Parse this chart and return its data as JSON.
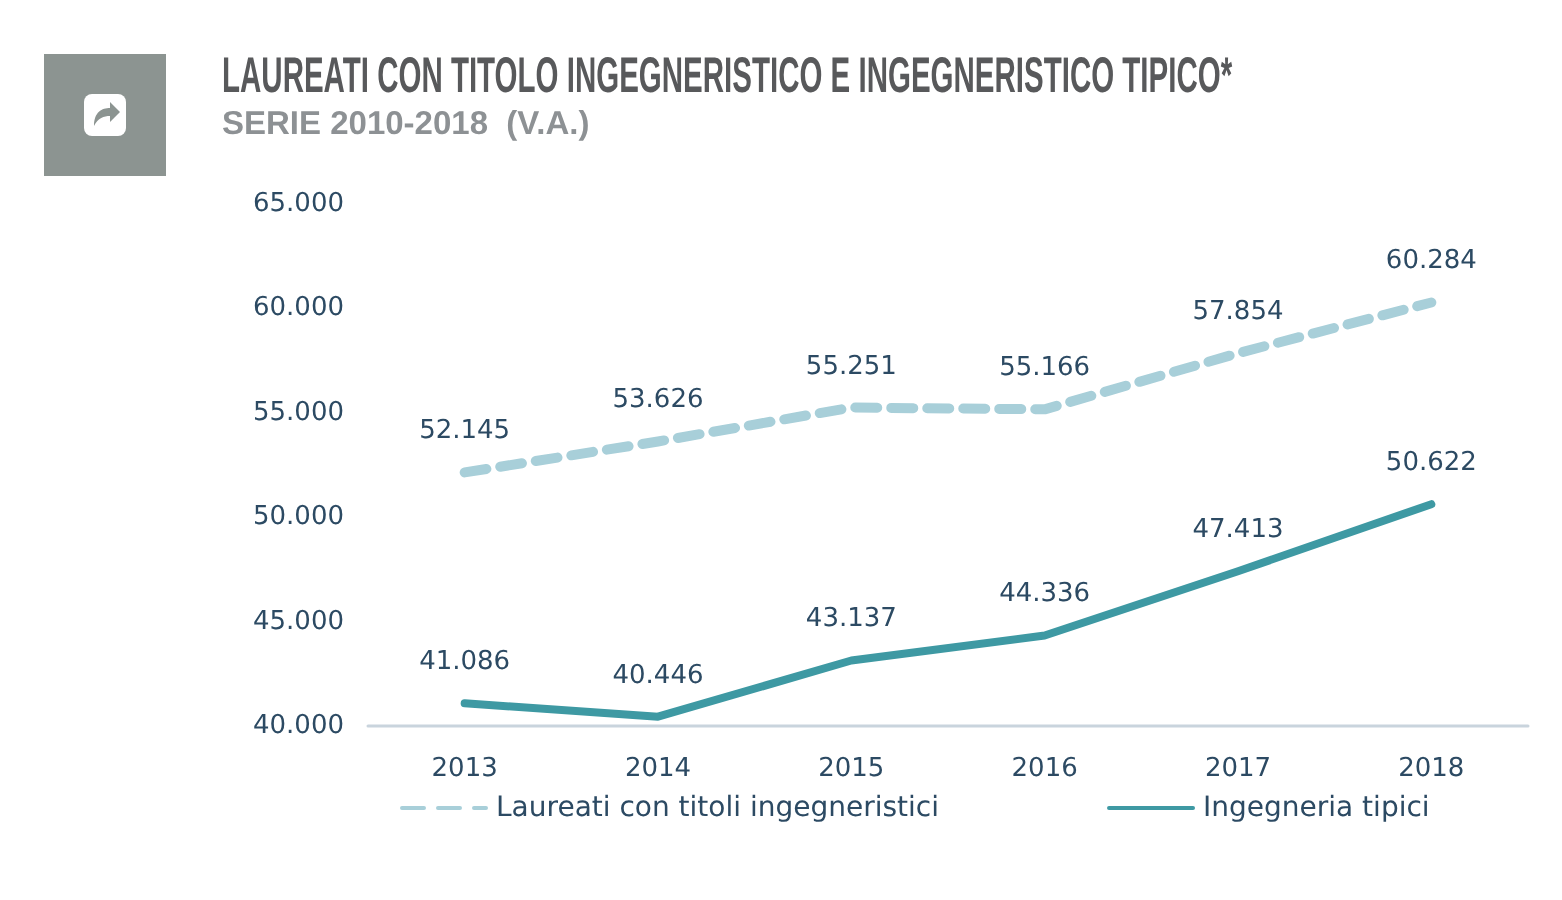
{
  "chart_data": {
    "type": "line",
    "title": "LAUREATI CON TITOLO INGEGNERISTICO E INGEGNERISTICO TIPICO*",
    "subtitle": "SERIE 2010-2018  (V.A.)",
    "categories": [
      "2013",
      "2014",
      "2015",
      "2016",
      "2017",
      "2018"
    ],
    "series": [
      {
        "name": "Laureati con titoli ingegneristici",
        "color": "#a8cfd9",
        "line_style": "dashed",
        "values": [
          52145,
          53626,
          55251,
          55166,
          57854,
          60284
        ],
        "value_labels": [
          "52.145",
          "53.626",
          "55.251",
          "55.166",
          "57.854",
          "60.284"
        ]
      },
      {
        "name": "Ingegneria tipici",
        "color": "#3e99a3",
        "line_style": "solid",
        "values": [
          41086,
          40446,
          43137,
          44336,
          47413,
          50622
        ],
        "value_labels": [
          "41.086",
          "40.446",
          "43.137",
          "44.336",
          "47.413",
          "50.622"
        ]
      }
    ],
    "ylim": [
      40000,
      65000
    ],
    "yticks": [
      {
        "value": 40000,
        "label": "40.000"
      },
      {
        "value": 45000,
        "label": "45.000"
      },
      {
        "value": 50000,
        "label": "50.000"
      },
      {
        "value": 55000,
        "label": "55.000"
      },
      {
        "value": 60000,
        "label": "60.000"
      },
      {
        "value": 65000,
        "label": "65.000"
      }
    ],
    "legend": "bottom",
    "marker": "none"
  }
}
